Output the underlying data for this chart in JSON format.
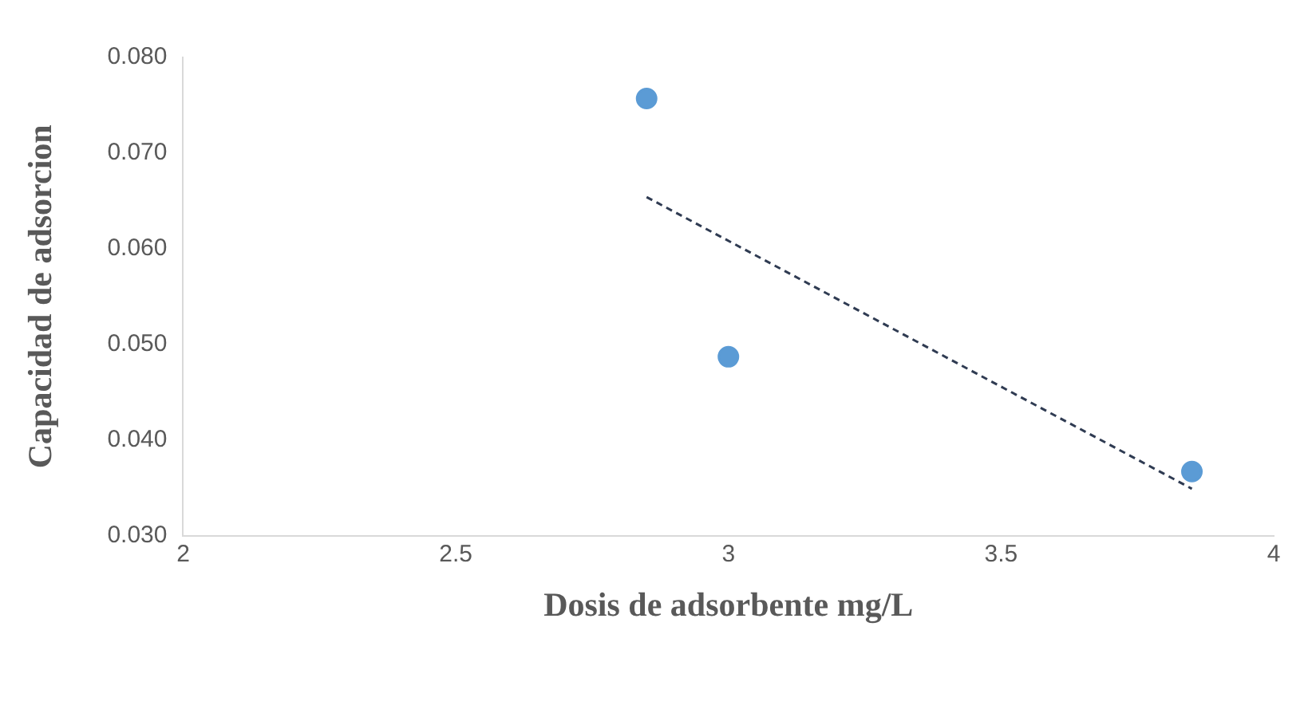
{
  "chart_data": {
    "type": "scatter",
    "xlabel": "Dosis de adsorbente mg/L",
    "ylabel": "Capacidad de adsorcion",
    "xlim": [
      2,
      4
    ],
    "xticks": [
      2,
      2.5,
      3,
      3.5,
      4
    ],
    "ylim": [
      0.03,
      0.08
    ],
    "yticks": [
      {
        "value": 0.03,
        "label": "0.030"
      },
      {
        "value": 0.04,
        "label": "0.040"
      },
      {
        "value": 0.05,
        "label": "0.050"
      },
      {
        "value": 0.06,
        "label": "0.060"
      },
      {
        "value": 0.07,
        "label": "0.070"
      },
      {
        "value": 0.08,
        "label": "0.080"
      }
    ],
    "series": [
      {
        "color": "#5b9bd5",
        "x": [
          2.85,
          3.0,
          3.85
        ],
        "values": [
          0.0757,
          0.0487,
          0.0367
        ],
        "marker": "circle"
      },
      {
        "type": "line",
        "color": "#2f3b52",
        "x": [
          2.85,
          3.85
        ],
        "values": [
          0.0654,
          0.0349
        ],
        "marker": "none",
        "line_style": "dashed"
      }
    ],
    "grid": false,
    "legend": false
  }
}
